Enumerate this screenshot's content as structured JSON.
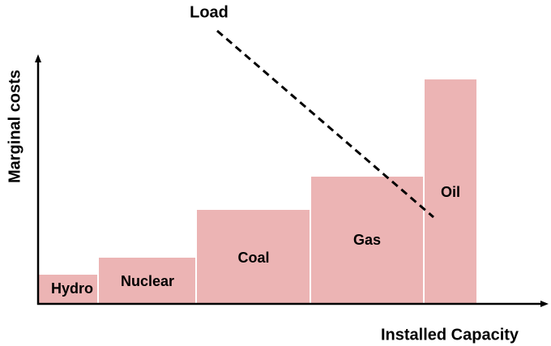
{
  "title": "Load",
  "y_axis_label": "Marginal costs",
  "x_axis_label": "Installed Capacity",
  "blocks": [
    {
      "label": "Hydro"
    },
    {
      "label": "Nuclear"
    },
    {
      "label": "Coal"
    },
    {
      "label": "Gas"
    },
    {
      "label": "Oil"
    }
  ]
}
